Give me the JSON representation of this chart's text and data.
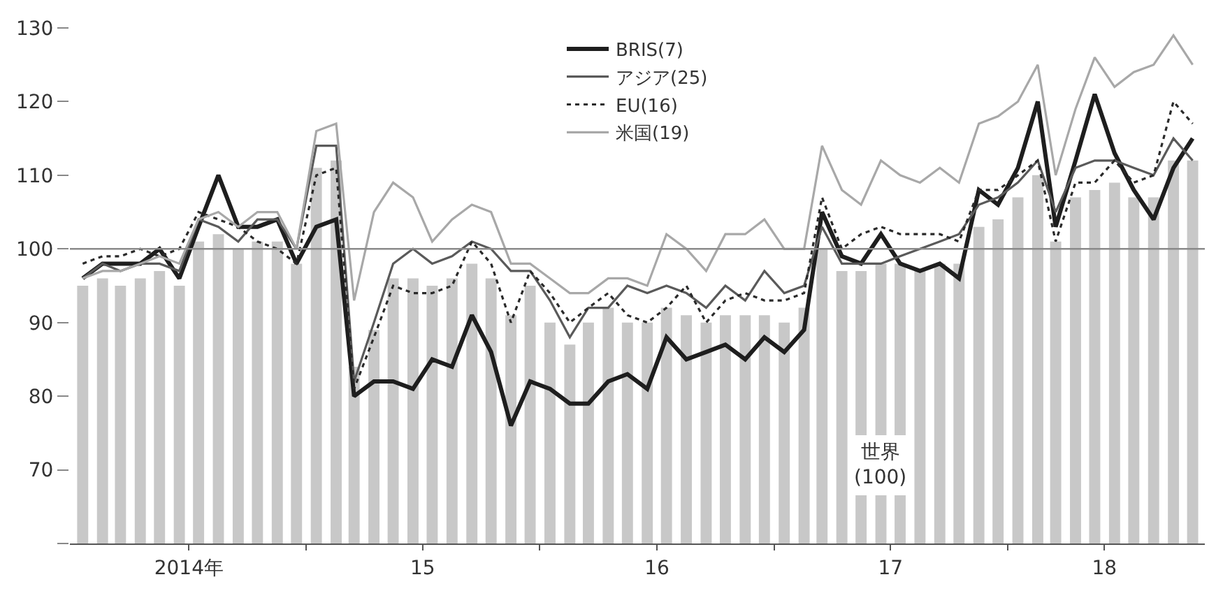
{
  "chart_data": {
    "type": "bar",
    "x": [
      "2014-01",
      "2014-02",
      "2014-03",
      "2014-04",
      "2014-05",
      "2014-06",
      "2014-07",
      "2014-08",
      "2014-09",
      "2014-10",
      "2014-11",
      "2014-12",
      "2015-01",
      "2015-02",
      "2015-03",
      "2015-04",
      "2015-05",
      "2015-06",
      "2015-07",
      "2015-08",
      "2015-09",
      "2015-10",
      "2015-11",
      "2015-12",
      "2016-01",
      "2016-02",
      "2016-03",
      "2016-04",
      "2016-05",
      "2016-06",
      "2016-07",
      "2016-08",
      "2016-09",
      "2016-10",
      "2016-11",
      "2016-12",
      "2017-01",
      "2017-02",
      "2017-03",
      "2017-04",
      "2017-05",
      "2017-06",
      "2017-07",
      "2017-08",
      "2017-09",
      "2017-10",
      "2017-11",
      "2017-12",
      "2018-01",
      "2018-02",
      "2018-03",
      "2018-04",
      "2018-05",
      "2018-06",
      "2018-07",
      "2018-08",
      "2018-09",
      "2018-10"
    ],
    "series": [
      {
        "name": "世界\n(100)",
        "color": "#c8c8c8",
        "values": [
          95,
          96,
          95,
          96,
          97,
          95,
          101,
          102,
          100,
          101,
          101,
          98,
          111,
          112,
          84,
          89,
          96,
          96,
          95,
          96,
          98,
          96,
          91,
          95,
          90,
          87,
          90,
          92,
          90,
          90,
          92,
          91,
          90,
          91,
          91,
          91,
          90,
          92,
          100,
          97,
          97,
          98,
          98,
          97,
          98,
          98,
          103,
          104,
          107,
          110,
          101,
          107,
          108,
          109,
          107,
          107,
          112,
          112
        ]
      },
      {
        "name": "BRIS(7)",
        "type": "line",
        "color": "#1e1e1e",
        "line_style": "solid",
        "values": [
          96,
          98,
          98,
          98,
          100,
          96,
          103,
          110,
          103,
          103,
          104,
          98,
          103,
          104,
          80,
          82,
          82,
          81,
          85,
          84,
          91,
          86,
          76,
          82,
          81,
          79,
          79,
          82,
          83,
          81,
          88,
          85,
          86,
          87,
          85,
          88,
          86,
          89,
          105,
          99,
          98,
          102,
          98,
          97,
          98,
          96,
          108,
          106,
          111,
          120,
          103,
          112,
          121,
          113,
          108,
          104,
          111,
          115
        ]
      },
      {
        "name": "アジア(25)",
        "type": "line",
        "color": "#5a5a5a",
        "line_style": "solid",
        "values": [
          96,
          98,
          97,
          98,
          98,
          97,
          104,
          103,
          101,
          104,
          104,
          100,
          114,
          114,
          82,
          90,
          98,
          100,
          98,
          99,
          101,
          100,
          97,
          97,
          93,
          88,
          92,
          92,
          95,
          94,
          95,
          94,
          92,
          95,
          93,
          97,
          94,
          95,
          103,
          98,
          98,
          98,
          99,
          100,
          101,
          102,
          106,
          107,
          109,
          112,
          105,
          111,
          112,
          112,
          111,
          110,
          115,
          112
        ]
      },
      {
        "name": "EU(16)",
        "type": "line",
        "color": "#2a2a2a",
        "line_style": "dotted",
        "values": [
          98,
          99,
          99,
          100,
          99,
          100,
          105,
          104,
          103,
          101,
          100,
          98,
          110,
          111,
          81,
          88,
          95,
          94,
          94,
          95,
          101,
          98,
          90,
          97,
          94,
          90,
          92,
          94,
          91,
          90,
          92,
          95,
          90,
          93,
          94,
          93,
          93,
          94,
          107,
          100,
          102,
          103,
          102,
          102,
          102,
          101,
          108,
          108,
          110,
          112,
          101,
          109,
          109,
          112,
          109,
          110,
          120,
          117
        ]
      },
      {
        "name": "米国(19)",
        "type": "line",
        "color": "#a8a8a8",
        "line_style": "solid",
        "values": [
          96,
          97,
          97,
          98,
          99,
          98,
          104,
          105,
          103,
          105,
          105,
          100,
          116,
          117,
          93,
          105,
          109,
          107,
          101,
          104,
          106,
          105,
          98,
          98,
          96,
          94,
          94,
          96,
          96,
          95,
          102,
          100,
          97,
          102,
          102,
          104,
          100,
          100,
          114,
          108,
          106,
          112,
          110,
          109,
          111,
          109,
          117,
          118,
          120,
          125,
          110,
          119,
          126,
          122,
          124,
          125,
          129,
          125
        ]
      }
    ],
    "ylim": [
      60,
      130
    ],
    "yticks": [
      {
        "value": 60,
        "label": null
      },
      70,
      80,
      90,
      100,
      110,
      120,
      130
    ],
    "xlim": [
      "2013-12-12",
      "2018-10-20"
    ],
    "xticks": [
      {
        "value": "2014-06-16",
        "label": "2014年"
      },
      {
        "value": "2014-12-16",
        "label": null
      },
      {
        "value": "2015-06-16",
        "label": "15"
      },
      {
        "value": "2015-12-16",
        "label": null
      },
      {
        "value": "2016-06-16",
        "label": "16"
      },
      {
        "value": "2016-12-16",
        "label": null
      },
      {
        "value": "2017-06-16",
        "label": "17"
      },
      {
        "value": "2017-12-16",
        "label": null
      },
      {
        "value": "2018-05-16",
        "label": "18"
      }
    ],
    "ref_lines": [
      {
        "axis": "y",
        "value": 100,
        "color": "#8a8a8a"
      }
    ],
    "legend": "top"
  }
}
